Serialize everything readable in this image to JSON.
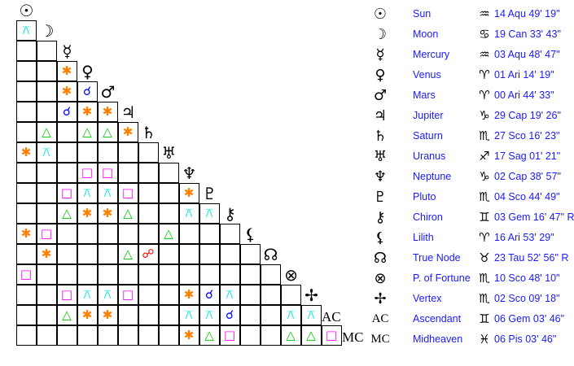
{
  "points": [
    {
      "name": "Sun",
      "glyph": "☉",
      "sign": "♒",
      "position": "14 Aqu 49' 19\""
    },
    {
      "name": "Moon",
      "glyph": "☽",
      "sign": "♋",
      "position": "19 Can 33' 43\""
    },
    {
      "name": "Mercury",
      "glyph": "☿",
      "sign": "♒",
      "position": "03 Aqu 48' 47\""
    },
    {
      "name": "Venus",
      "glyph": "♀",
      "sign": "♈",
      "position": "01 Ari 14' 19\""
    },
    {
      "name": "Mars",
      "glyph": "♂",
      "sign": "♈",
      "position": "00 Ari 44' 33\""
    },
    {
      "name": "Jupiter",
      "glyph": "♃",
      "sign": "♑",
      "position": "29 Cap 19' 26\""
    },
    {
      "name": "Saturn",
      "glyph": "♄",
      "sign": "♏",
      "position": "27 Sco 16' 23\""
    },
    {
      "name": "Uranus",
      "glyph": "♅",
      "sign": "♐",
      "position": "17 Sag 01' 21\""
    },
    {
      "name": "Neptune",
      "glyph": "♆",
      "sign": "♑",
      "position": "02 Cap 38' 57\""
    },
    {
      "name": "Pluto",
      "glyph": "♇",
      "sign": "♏",
      "position": "04 Sco 44' 49\""
    },
    {
      "name": "Chiron",
      "glyph": "⚷",
      "sign": "♊",
      "position": "03 Gem 16' 47\" R"
    },
    {
      "name": "Lilith",
      "glyph": "⚸",
      "sign": "♈",
      "position": "16 Ari 53' 29\""
    },
    {
      "name": "True Node",
      "glyph": "☊",
      "sign": "♉",
      "position": "23 Tau 52' 56\" R"
    },
    {
      "name": "P. of Fortune",
      "glyph": "⊗",
      "sign": "♏",
      "position": "10 Sco 48' 10\""
    },
    {
      "name": "Vertex",
      "glyph": "✢",
      "sign": "♏",
      "position": "02 Sco 09' 18\""
    },
    {
      "name": "Ascendant",
      "glyph": "AC",
      "text_glyph": true,
      "sign": "♊",
      "position": "06 Gem 03' 46\""
    },
    {
      "name": "Midheaven",
      "glyph": "MC",
      "text_glyph": true,
      "sign": "♓",
      "position": "06 Pis 03' 46\""
    }
  ],
  "aspect_types": {
    "conjunction": {
      "glyph": "☌",
      "color": "#0000ff"
    },
    "opposition": {
      "glyph": "☍",
      "color": "#ff0000"
    },
    "trine": {
      "glyph": "△",
      "color": "#00cc00"
    },
    "square": {
      "glyph": "□",
      "color": "#ff00ff"
    },
    "sextile": {
      "glyph": "✱",
      "color": "#ff8000"
    },
    "quincunx": {
      "glyph": "⚻",
      "color": "#00e5e5"
    }
  },
  "aspects": [
    [
      "Moon",
      "Sun",
      "quincunx"
    ],
    [
      "Venus",
      "Mercury",
      "sextile"
    ],
    [
      "Mars",
      "Mercury",
      "sextile"
    ],
    [
      "Mars",
      "Venus",
      "conjunction"
    ],
    [
      "Jupiter",
      "Mercury",
      "conjunction"
    ],
    [
      "Jupiter",
      "Venus",
      "sextile"
    ],
    [
      "Jupiter",
      "Mars",
      "sextile"
    ],
    [
      "Saturn",
      "Moon",
      "trine"
    ],
    [
      "Saturn",
      "Venus",
      "trine"
    ],
    [
      "Saturn",
      "Mars",
      "trine"
    ],
    [
      "Saturn",
      "Jupiter",
      "sextile"
    ],
    [
      "Uranus",
      "Sun",
      "sextile"
    ],
    [
      "Uranus",
      "Moon",
      "quincunx"
    ],
    [
      "Neptune",
      "Venus",
      "square"
    ],
    [
      "Neptune",
      "Mars",
      "square"
    ],
    [
      "Pluto",
      "Mercury",
      "square"
    ],
    [
      "Pluto",
      "Venus",
      "quincunx"
    ],
    [
      "Pluto",
      "Mars",
      "quincunx"
    ],
    [
      "Pluto",
      "Jupiter",
      "square"
    ],
    [
      "Pluto",
      "Neptune",
      "sextile"
    ],
    [
      "Chiron",
      "Mercury",
      "trine"
    ],
    [
      "Chiron",
      "Venus",
      "sextile"
    ],
    [
      "Chiron",
      "Mars",
      "sextile"
    ],
    [
      "Chiron",
      "Jupiter",
      "trine"
    ],
    [
      "Chiron",
      "Neptune",
      "quincunx"
    ],
    [
      "Chiron",
      "Pluto",
      "quincunx"
    ],
    [
      "Lilith",
      "Sun",
      "sextile"
    ],
    [
      "Lilith",
      "Moon",
      "square"
    ],
    [
      "Lilith",
      "Uranus",
      "trine"
    ],
    [
      "True Node",
      "Moon",
      "sextile"
    ],
    [
      "True Node",
      "Jupiter",
      "trine"
    ],
    [
      "True Node",
      "Saturn",
      "opposition"
    ],
    [
      "P. of Fortune",
      "Sun",
      "square"
    ],
    [
      "Vertex",
      "Mercury",
      "square"
    ],
    [
      "Vertex",
      "Venus",
      "quincunx"
    ],
    [
      "Vertex",
      "Mars",
      "quincunx"
    ],
    [
      "Vertex",
      "Jupiter",
      "square"
    ],
    [
      "Vertex",
      "Neptune",
      "sextile"
    ],
    [
      "Vertex",
      "Pluto",
      "conjunction"
    ],
    [
      "Vertex",
      "Chiron",
      "quincunx"
    ],
    [
      "Ascendant",
      "Mercury",
      "trine"
    ],
    [
      "Ascendant",
      "Venus",
      "sextile"
    ],
    [
      "Ascendant",
      "Mars",
      "sextile"
    ],
    [
      "Ascendant",
      "Neptune",
      "quincunx"
    ],
    [
      "Ascendant",
      "Pluto",
      "quincunx"
    ],
    [
      "Ascendant",
      "Chiron",
      "conjunction"
    ],
    [
      "Ascendant",
      "P. of Fortune",
      "quincunx"
    ],
    [
      "Ascendant",
      "Vertex",
      "quincunx"
    ],
    [
      "Midheaven",
      "Neptune",
      "sextile"
    ],
    [
      "Midheaven",
      "Pluto",
      "trine"
    ],
    [
      "Midheaven",
      "Chiron",
      "square"
    ],
    [
      "Midheaven",
      "P. of Fortune",
      "trine"
    ],
    [
      "Midheaven",
      "Vertex",
      "trine"
    ],
    [
      "Midheaven",
      "Ascendant",
      "square"
    ]
  ]
}
